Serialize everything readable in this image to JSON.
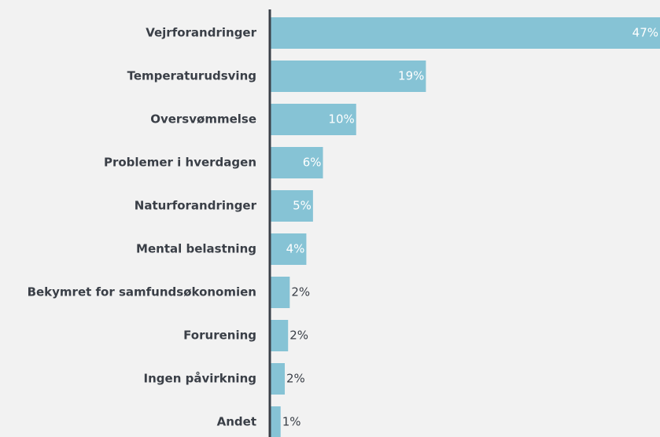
{
  "chart_data": {
    "type": "barh",
    "categories": [
      "Vejrforandringer",
      "Temperaturudsving",
      "Oversvømmelse",
      "Problemer i hverdagen",
      "Naturforandringer",
      "Mental belastning",
      "Bekymret for samfundsøkonomien",
      "Forurening",
      "Ingen påvirkning",
      "Andet"
    ],
    "values": [
      47,
      18.8,
      10.4,
      6.4,
      5.2,
      4.4,
      2.4,
      2.2,
      1.8,
      1.3
    ],
    "value_labels": [
      "47%",
      "19%",
      "10%",
      "6%",
      "5%",
      "4%",
      "2%",
      "2%",
      "2%",
      "1%"
    ],
    "color": "#86c3d5",
    "xlim": [
      0,
      47
    ]
  }
}
